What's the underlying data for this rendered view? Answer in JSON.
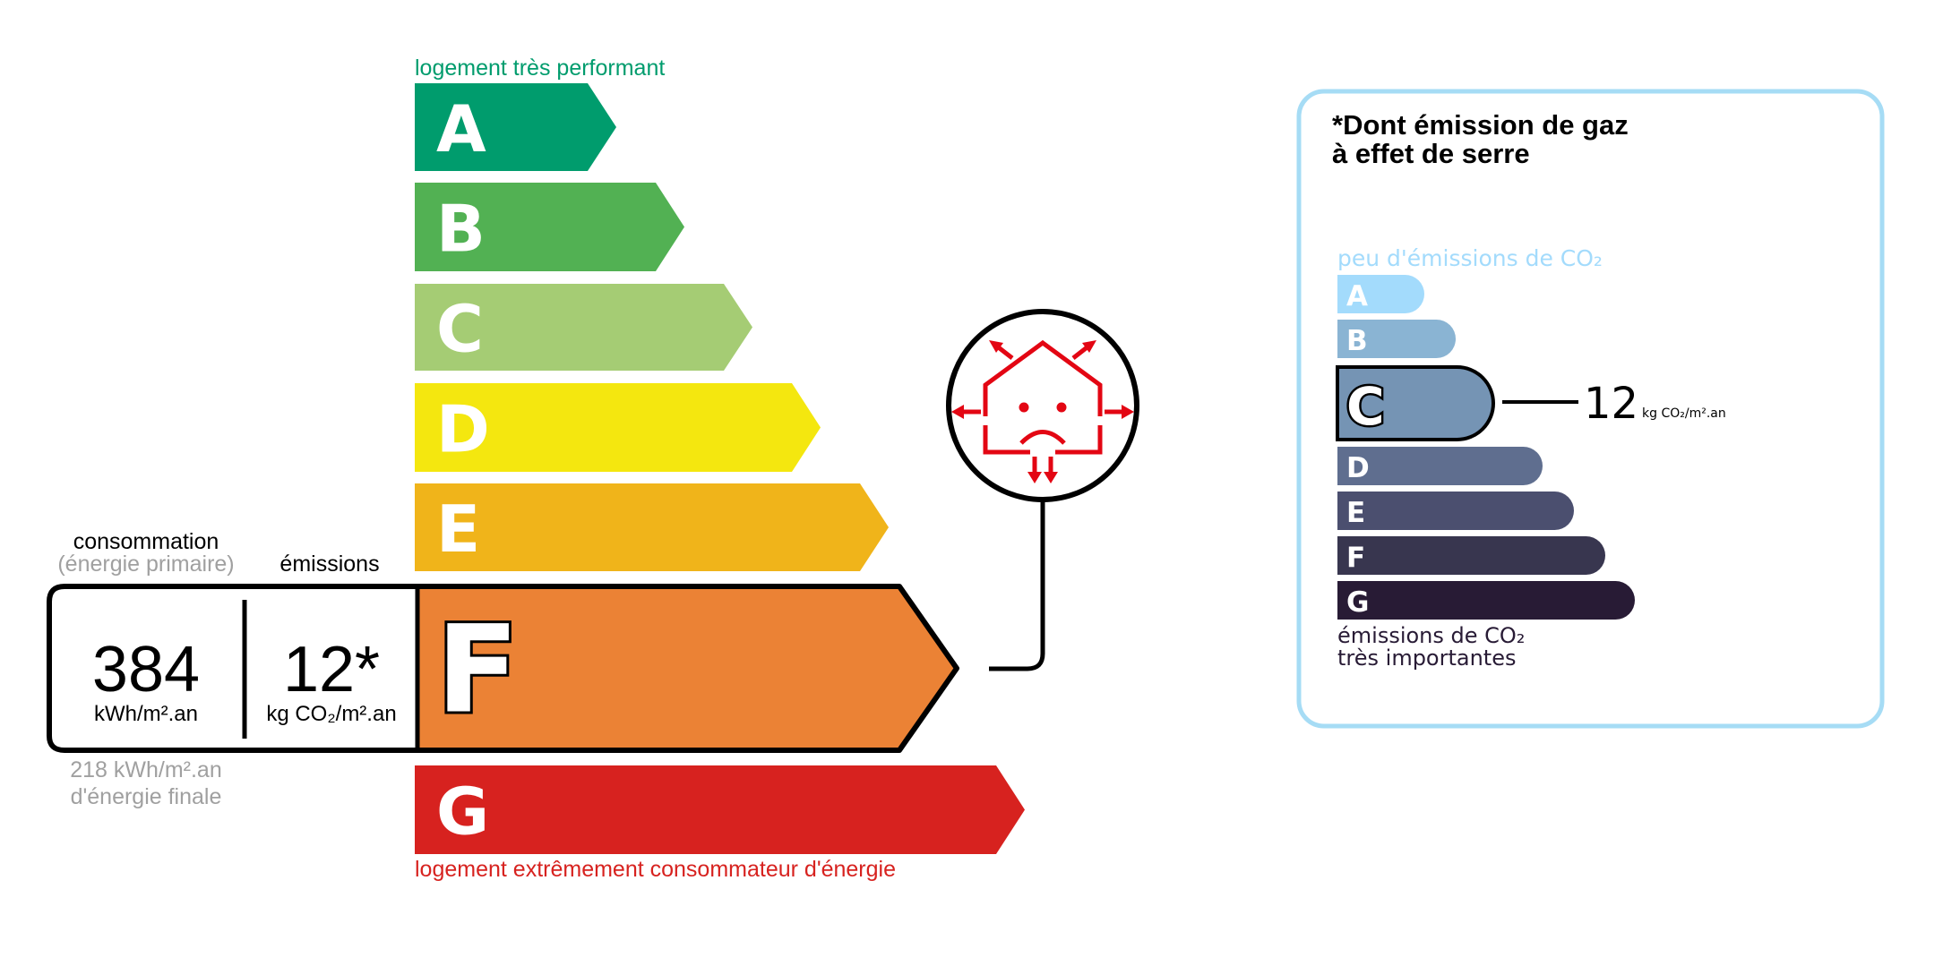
{
  "energy": {
    "top_label": "logement très performant",
    "bottom_label": "logement extrêmement consommateur d'énergie",
    "classes": [
      {
        "letter": "A",
        "color": "#009c6d"
      },
      {
        "letter": "B",
        "color": "#52b153"
      },
      {
        "letter": "C",
        "color": "#a5cc74"
      },
      {
        "letter": "D",
        "color": "#f4e70f"
      },
      {
        "letter": "E",
        "color": "#f0b41a"
      },
      {
        "letter": "F",
        "color": "#eb8235"
      },
      {
        "letter": "G",
        "color": "#d7221f"
      }
    ],
    "current_class": "F",
    "consumption_label": "consommation",
    "consumption_sublabel": "(énergie primaire)",
    "emissions_label": "émissions",
    "consumption_value": "384",
    "consumption_unit": "kWh/m².an",
    "emissions_value": "12*",
    "emissions_unit": "kg CO₂/m².an",
    "final_energy_value": "218 kWh/m².an",
    "final_energy_label": "d'énergie finale",
    "icon": "house-heat-loss-sad-face-icon",
    "icon_color": "#e30613"
  },
  "ges": {
    "title_line1": "*Dont émission de gaz",
    "title_line2": "à effet de serre",
    "top_label": "peu d'émissions de CO₂",
    "bottom_label_line1": "émissions de CO₂",
    "bottom_label_line2": "très importantes",
    "classes": [
      {
        "letter": "A",
        "color": "#a3dbfc"
      },
      {
        "letter": "B",
        "color": "#8ab4d3"
      },
      {
        "letter": "C",
        "color": "#7594b4"
      },
      {
        "letter": "D",
        "color": "#5f6e8f"
      },
      {
        "letter": "E",
        "color": "#4b4f6f"
      },
      {
        "letter": "F",
        "color": "#38364f"
      },
      {
        "letter": "G",
        "color": "#281b35"
      }
    ],
    "current_class": "C",
    "value": "12",
    "unit": "kg CO₂/m².an",
    "border_color": "#a6dcf5"
  }
}
